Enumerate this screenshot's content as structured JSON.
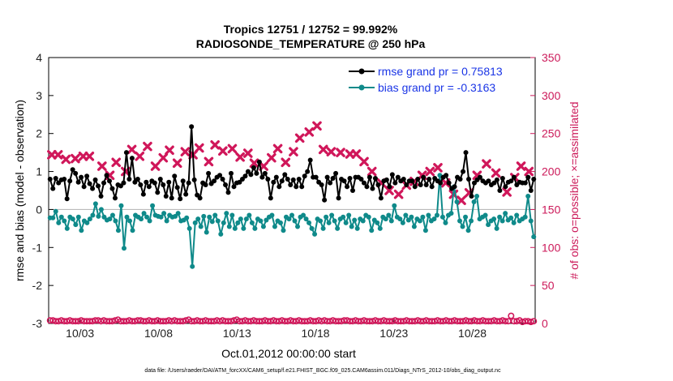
{
  "chart_data": {
    "type": "line",
    "title_line1": "Tropics 12751 / 12752 = 99.992%",
    "title_line2": "RADIOSONDE_TEMPERATURE @ 250 hPa",
    "xlabel": "Oct.01,2012 00:00:00 start",
    "ylabel": "rmse and bias (model - observation)",
    "y2label": "# of obs: o=possible; ×=assimilated",
    "footer": "data file: /Users/raeder/DAI/ATM_forcXX/CAM6_setup/f.e21.FHIST_BGC.f09_025.CAM6assim.011/Diags_NTrS_2012-10/obs_diag_output.nc",
    "xlim": [
      1.0,
      32.0
    ],
    "ylim": [
      -3,
      4
    ],
    "y2lim": [
      0,
      350
    ],
    "x_tick_values": [
      3,
      8,
      13,
      18,
      23,
      28
    ],
    "x_tick_labels": [
      "10/03",
      "10/08",
      "10/13",
      "10/18",
      "10/23",
      "10/28"
    ],
    "y_ticks": [
      "-3",
      "-2",
      "-1",
      "0",
      "1",
      "2",
      "3",
      "4"
    ],
    "y2_ticks": [
      "0",
      "50",
      "100",
      "150",
      "200",
      "250",
      "300",
      "350"
    ],
    "colors": {
      "rmse": "#000000",
      "bias": "#0f8a8a",
      "obs": "#d0175a",
      "legend_text": "#1a35e6",
      "zero_line": "#bbbbbb"
    },
    "series": [
      {
        "name": "rmse grand pr = 0.75813",
        "values": [
          0.8,
          0.55,
          0.82,
          0.7,
          0.78,
          0.8,
          0.28,
          0.75,
          1.05,
          0.95,
          0.72,
          0.85,
          0.6,
          0.88,
          0.68,
          0.55,
          0.78,
          0.62,
          0.35,
          0.7,
          0.9,
          0.75,
          0.55,
          0.3,
          0.65,
          0.62,
          0.7,
          1.5,
          0.8,
          1.35,
          0.72,
          0.8,
          0.65,
          0.4,
          0.72,
          0.6,
          0.75,
          0.7,
          0.45,
          0.8,
          0.65,
          0.35,
          0.72,
          0.3,
          0.88,
          0.58,
          0.28,
          0.75,
          0.4,
          0.7,
          2.18,
          0.78,
          0.38,
          0.3,
          0.7,
          0.65,
          0.95,
          0.68,
          0.75,
          0.85,
          0.9,
          0.8,
          0.65,
          0.45,
          0.95,
          0.6,
          0.7,
          0.72,
          0.8,
          0.88,
          1.0,
          0.92,
          1.1,
          0.95,
          1.25,
          0.85,
          0.95,
          0.8,
          0.3,
          0.72,
          0.85,
          0.6,
          0.75,
          0.92,
          0.8,
          0.65,
          0.78,
          0.6,
          0.8,
          0.6,
          0.88,
          1.0,
          1.3,
          0.85,
          0.85,
          0.72,
          0.65,
          0.25,
          0.85,
          0.7,
          0.82,
          0.95,
          0.3,
          0.8,
          0.75,
          0.6,
          0.82,
          0.5,
          0.85,
          0.85,
          0.8,
          0.7,
          0.6,
          0.85,
          0.55,
          0.82,
          0.65,
          0.3,
          0.75,
          0.78,
          0.6,
          0.92,
          0.7,
          0.85,
          0.75,
          0.8,
          0.65,
          0.75,
          0.75,
          0.6,
          0.8,
          0.65,
          0.85,
          0.65,
          0.8,
          0.6,
          0.82,
          0.75,
          0.7,
          0.85,
          0.9,
          0.7,
          0.55,
          0.6,
          0.85,
          0.8,
          1.0,
          1.5,
          0.8,
          0.35,
          0.7,
          0.78,
          0.85,
          0.75,
          0.7,
          0.75,
          0.65,
          0.7,
          0.78,
          0.5,
          0.82,
          0.6,
          0.72,
          0.75,
          0.85,
          0.65,
          0.72,
          0.7,
          0.7,
          0.85,
          0.5,
          0.8
        ]
      },
      {
        "name": "bias grand pr = -0.3163",
        "values": [
          -0.22,
          -0.22,
          -0.05,
          -0.35,
          -0.2,
          -0.3,
          -0.5,
          -0.2,
          -0.25,
          -0.4,
          -0.2,
          -0.55,
          -0.3,
          -0.35,
          -0.25,
          -0.15,
          0.15,
          -0.18,
          0.0,
          -0.2,
          -0.28,
          -0.25,
          -0.15,
          -0.3,
          -0.55,
          0.1,
          -1.02,
          -0.2,
          -0.3,
          -0.55,
          -0.15,
          -0.2,
          -0.25,
          -0.1,
          -0.2,
          -0.3,
          0.1,
          -0.15,
          -0.18,
          -0.2,
          -0.1,
          -0.3,
          -0.15,
          -0.2,
          -0.18,
          -0.1,
          -0.3,
          -0.28,
          -0.22,
          -0.5,
          -1.5,
          -0.35,
          -0.25,
          -0.45,
          -0.18,
          -0.6,
          -0.2,
          -0.32,
          -0.15,
          -0.3,
          -0.65,
          -0.35,
          -0.1,
          -0.45,
          -0.15,
          -0.5,
          -0.35,
          -0.25,
          -0.5,
          -0.25,
          -0.15,
          -0.35,
          -0.5,
          -0.25,
          -0.3,
          -0.45,
          -0.28,
          -0.2,
          -0.15,
          -0.45,
          -0.3,
          -0.35,
          -0.55,
          -0.2,
          -0.25,
          -0.15,
          -0.3,
          -0.45,
          -0.2,
          -0.15,
          -0.25,
          -0.35,
          -0.5,
          -0.65,
          -0.25,
          -0.3,
          -0.5,
          -0.2,
          -0.35,
          -0.15,
          -0.3,
          -0.5,
          -0.25,
          -0.2,
          -0.35,
          -0.15,
          -0.45,
          -0.28,
          -0.5,
          -0.25,
          -0.3,
          -0.15,
          -0.2,
          -0.55,
          -0.28,
          -0.35,
          -0.5,
          -0.2,
          -0.25,
          -0.15,
          -0.3,
          0.1,
          -0.2,
          -0.25,
          -0.35,
          -0.15,
          -0.28,
          -0.2,
          -0.45,
          -0.25,
          -0.3,
          -0.2,
          -0.55,
          -0.15,
          -0.3,
          -0.25,
          -0.15,
          0.9,
          -0.2,
          -0.35,
          -0.15,
          -0.1,
          0.6,
          0.2,
          -0.3,
          -0.45,
          -0.2,
          -0.55,
          -0.3,
          0.2,
          0.35,
          -0.25,
          -0.2,
          -0.15,
          -0.4,
          -0.3,
          -0.25,
          -0.5,
          -0.2,
          -0.3,
          -0.1,
          -0.28,
          -0.22,
          -0.35,
          -0.15,
          -0.3,
          -0.25,
          -0.2,
          0.35,
          -0.3,
          -0.72
        ]
      }
    ],
    "obs_possible": [
      4,
      4,
      3,
      3,
      4,
      3,
      3,
      4,
      3,
      3,
      3,
      4,
      3,
      3,
      3,
      3,
      4,
      4,
      3,
      4,
      3,
      3,
      3,
      4,
      5,
      3,
      3,
      3,
      4,
      3,
      3,
      4,
      4,
      3,
      3,
      4,
      3,
      3,
      4,
      3,
      3,
      3,
      4,
      3,
      4,
      3,
      3,
      3,
      4,
      5,
      3,
      3,
      4,
      3,
      3,
      4,
      3,
      3,
      3,
      4,
      3,
      4,
      3,
      3,
      3,
      4,
      5,
      3,
      3,
      4,
      3,
      3,
      4,
      3,
      3,
      3,
      4,
      3,
      3,
      4,
      3,
      3,
      4,
      3,
      3,
      4,
      3,
      3,
      4,
      3,
      3,
      3,
      4,
      3,
      3,
      4,
      3,
      4,
      3,
      3,
      4,
      3,
      3,
      3,
      4,
      4,
      3,
      3,
      4,
      3,
      3,
      4,
      3,
      3,
      3,
      4,
      3,
      3,
      4,
      3,
      3,
      3,
      4,
      3,
      3,
      3,
      4,
      3,
      3,
      3,
      4,
      3,
      3,
      4,
      3,
      3,
      3,
      4,
      3,
      3,
      4,
      3,
      3,
      4,
      3,
      3,
      3,
      4,
      3,
      3,
      4,
      3,
      3,
      4,
      3,
      3,
      3,
      4,
      3,
      3,
      4,
      3,
      3,
      10,
      3,
      3,
      4,
      2,
      3,
      3,
      2,
      3
    ],
    "obs_assimilated": [
      [
        1.2,
        222
      ],
      [
        1.6,
        222
      ],
      [
        2.1,
        216
      ],
      [
        2.7,
        217
      ],
      [
        3.2,
        220
      ],
      [
        3.6,
        220
      ],
      [
        4.4,
        207
      ],
      [
        4.9,
        195
      ],
      [
        5.3,
        212
      ],
      [
        5.9,
        200
      ],
      [
        6.3,
        229
      ],
      [
        6.8,
        220
      ],
      [
        7.3,
        233
      ],
      [
        7.8,
        207
      ],
      [
        8.3,
        218
      ],
      [
        8.7,
        228
      ],
      [
        9.2,
        211
      ],
      [
        9.7,
        226
      ],
      [
        10.2,
        222
      ],
      [
        10.6,
        231
      ],
      [
        11.2,
        213
      ],
      [
        11.6,
        235
      ],
      [
        12.1,
        227
      ],
      [
        12.7,
        230
      ],
      [
        13.2,
        219
      ],
      [
        13.7,
        224
      ],
      [
        14.1,
        211
      ],
      [
        14.7,
        207
      ],
      [
        15.2,
        218
      ],
      [
        15.6,
        230
      ],
      [
        16.1,
        212
      ],
      [
        16.6,
        226
      ],
      [
        17.0,
        244
      ],
      [
        17.6,
        252
      ],
      [
        18.1,
        260
      ],
      [
        18.5,
        229
      ],
      [
        19.0,
        226
      ],
      [
        19.6,
        225
      ],
      [
        20.2,
        223
      ],
      [
        20.6,
        223
      ],
      [
        21.1,
        213
      ],
      [
        21.6,
        200
      ],
      [
        22.2,
        185
      ],
      [
        22.7,
        175
      ],
      [
        23.3,
        170
      ],
      [
        23.8,
        182
      ],
      [
        24.3,
        187
      ],
      [
        24.8,
        195
      ],
      [
        25.3,
        200
      ],
      [
        25.8,
        205
      ],
      [
        26.3,
        185
      ],
      [
        26.8,
        170
      ],
      [
        27.3,
        162
      ],
      [
        27.8,
        172
      ],
      [
        28.3,
        195
      ],
      [
        28.9,
        210
      ],
      [
        29.5,
        198
      ],
      [
        30.2,
        173
      ],
      [
        30.7,
        192
      ],
      [
        31.1,
        207
      ],
      [
        31.6,
        200
      ]
    ]
  }
}
